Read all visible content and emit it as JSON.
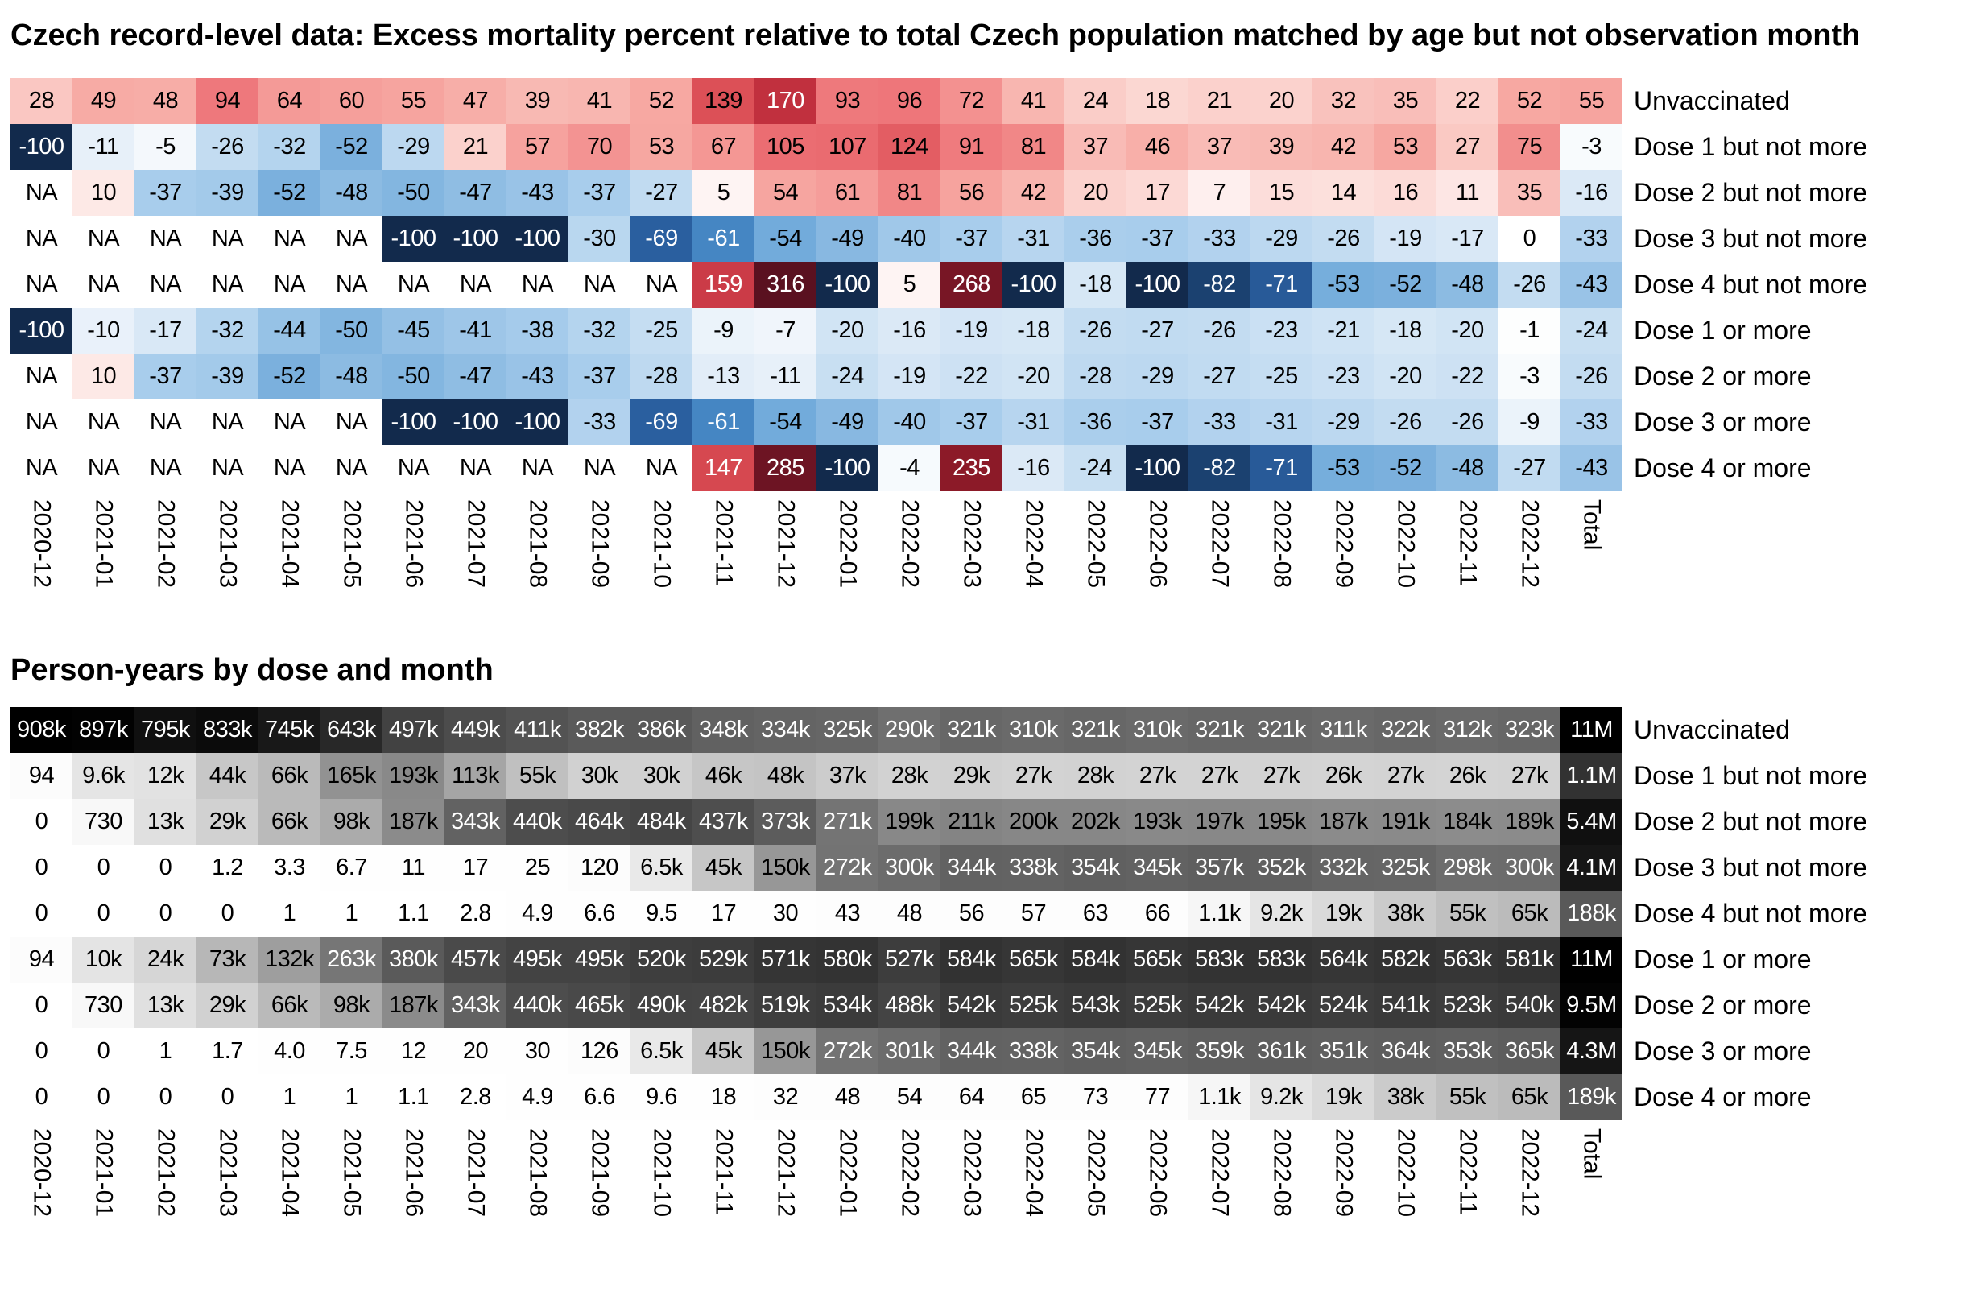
{
  "chart_data": [
    {
      "type": "heatmap",
      "title": "Czech record-level data: Excess mortality percent relative to total Czech population matched by age but not observation month",
      "legend_position": "none",
      "grid": false,
      "columns": [
        "2020-12",
        "2021-01",
        "2021-02",
        "2021-03",
        "2021-04",
        "2021-05",
        "2021-06",
        "2021-07",
        "2021-08",
        "2021-09",
        "2021-10",
        "2021-11",
        "2021-12",
        "2022-01",
        "2022-02",
        "2022-03",
        "2022-04",
        "2022-05",
        "2022-06",
        "2022-07",
        "2022-08",
        "2022-09",
        "2022-10",
        "2022-11",
        "2022-12",
        "Total"
      ],
      "rows": [
        "Unvaccinated",
        "Dose 1 but not more",
        "Dose 2 but not more",
        "Dose 3 but not more",
        "Dose 4 but not more",
        "Dose 1 or more",
        "Dose 2 or more",
        "Dose 3 or more",
        "Dose 4 or more"
      ],
      "values": [
        [
          "28",
          "49",
          "48",
          "94",
          "64",
          "60",
          "55",
          "47",
          "39",
          "41",
          "52",
          "139",
          "170",
          "93",
          "96",
          "72",
          "41",
          "24",
          "18",
          "21",
          "20",
          "32",
          "35",
          "22",
          "52",
          "55"
        ],
        [
          "-100",
          "-11",
          "-5",
          "-26",
          "-32",
          "-52",
          "-29",
          "21",
          "57",
          "70",
          "53",
          "67",
          "105",
          "107",
          "124",
          "91",
          "81",
          "37",
          "46",
          "37",
          "39",
          "42",
          "53",
          "27",
          "75",
          "-3"
        ],
        [
          "NA",
          "10",
          "-37",
          "-39",
          "-52",
          "-48",
          "-50",
          "-47",
          "-43",
          "-37",
          "-27",
          "5",
          "54",
          "61",
          "81",
          "56",
          "42",
          "20",
          "17",
          "7",
          "15",
          "14",
          "16",
          "11",
          "35",
          "-16"
        ],
        [
          "NA",
          "NA",
          "NA",
          "NA",
          "NA",
          "NA",
          "-100",
          "-100",
          "-100",
          "-30",
          "-69",
          "-61",
          "-54",
          "-49",
          "-40",
          "-37",
          "-31",
          "-36",
          "-37",
          "-33",
          "-29",
          "-26",
          "-19",
          "-17",
          "0",
          "-33"
        ],
        [
          "NA",
          "NA",
          "NA",
          "NA",
          "NA",
          "NA",
          "NA",
          "NA",
          "NA",
          "NA",
          "NA",
          "159",
          "316",
          "-100",
          "5",
          "268",
          "-100",
          "-18",
          "-100",
          "-82",
          "-71",
          "-53",
          "-52",
          "-48",
          "-26",
          "-43"
        ],
        [
          "-100",
          "-10",
          "-17",
          "-32",
          "-44",
          "-50",
          "-45",
          "-41",
          "-38",
          "-32",
          "-25",
          "-9",
          "-7",
          "-20",
          "-16",
          "-19",
          "-18",
          "-26",
          "-27",
          "-26",
          "-23",
          "-21",
          "-18",
          "-20",
          "-1",
          "-24"
        ],
        [
          "NA",
          "10",
          "-37",
          "-39",
          "-52",
          "-48",
          "-50",
          "-47",
          "-43",
          "-37",
          "-28",
          "-13",
          "-11",
          "-24",
          "-19",
          "-22",
          "-20",
          "-28",
          "-29",
          "-27",
          "-25",
          "-23",
          "-20",
          "-22",
          "-3",
          "-26"
        ],
        [
          "NA",
          "NA",
          "NA",
          "NA",
          "NA",
          "NA",
          "-100",
          "-100",
          "-100",
          "-33",
          "-69",
          "-61",
          "-54",
          "-49",
          "-40",
          "-37",
          "-31",
          "-36",
          "-37",
          "-33",
          "-31",
          "-29",
          "-26",
          "-26",
          "-9",
          "-33"
        ],
        [
          "NA",
          "NA",
          "NA",
          "NA",
          "NA",
          "NA",
          "NA",
          "NA",
          "NA",
          "NA",
          "NA",
          "147",
          "285",
          "-100",
          "-4",
          "235",
          "-16",
          "-24",
          "-100",
          "-82",
          "-71",
          "-53",
          "-52",
          "-48",
          "-27",
          "-43"
        ]
      ],
      "colorscale": {
        "type": "diverging",
        "na_color": "#ffffff",
        "positive_stops": [
          [
            0,
            "#ffffff"
          ],
          [
            20,
            "#fbd2cd"
          ],
          [
            50,
            "#f7aaa4"
          ],
          [
            100,
            "#ed7176"
          ],
          [
            140,
            "#dc4f56"
          ],
          [
            170,
            "#c1303e"
          ],
          [
            235,
            "#8c1a28"
          ],
          [
            316,
            "#5a1120"
          ]
        ],
        "negative_stops": [
          [
            0,
            "#ffffff"
          ],
          [
            11,
            "#e7f0f9"
          ],
          [
            26,
            "#c3dcf1"
          ],
          [
            37,
            "#a8cdec"
          ],
          [
            48,
            "#8cbbe2"
          ],
          [
            54,
            "#72abdb"
          ],
          [
            61,
            "#4586c3"
          ],
          [
            69,
            "#2a5f9f"
          ],
          [
            82,
            "#1b4170"
          ],
          [
            100,
            "#122a4c"
          ]
        ],
        "white_text_when_above": 145,
        "white_text_when_below": -60
      }
    },
    {
      "type": "heatmap",
      "title": "Person-years by dose and month",
      "legend_position": "none",
      "grid": false,
      "columns": [
        "2020-12",
        "2021-01",
        "2021-02",
        "2021-03",
        "2021-04",
        "2021-05",
        "2021-06",
        "2021-07",
        "2021-08",
        "2021-09",
        "2021-10",
        "2021-11",
        "2021-12",
        "2022-01",
        "2022-02",
        "2022-03",
        "2022-04",
        "2022-05",
        "2022-06",
        "2022-07",
        "2022-08",
        "2022-09",
        "2022-10",
        "2022-11",
        "2022-12",
        "Total"
      ],
      "rows": [
        "Unvaccinated",
        "Dose 1 but not more",
        "Dose 2 but not more",
        "Dose 3 but not more",
        "Dose 4 but not more",
        "Dose 1 or more",
        "Dose 2 or more",
        "Dose 3 or more",
        "Dose 4 or more"
      ],
      "values": [
        [
          "908k",
          "897k",
          "795k",
          "833k",
          "745k",
          "643k",
          "497k",
          "449k",
          "411k",
          "382k",
          "386k",
          "348k",
          "334k",
          "325k",
          "290k",
          "321k",
          "310k",
          "321k",
          "310k",
          "321k",
          "321k",
          "311k",
          "322k",
          "312k",
          "323k",
          "11M"
        ],
        [
          "94",
          "9.6k",
          "12k",
          "44k",
          "66k",
          "165k",
          "193k",
          "113k",
          "55k",
          "30k",
          "30k",
          "46k",
          "48k",
          "37k",
          "28k",
          "29k",
          "27k",
          "28k",
          "27k",
          "27k",
          "27k",
          "26k",
          "27k",
          "26k",
          "27k",
          "1.1M"
        ],
        [
          "0",
          "730",
          "13k",
          "29k",
          "66k",
          "98k",
          "187k",
          "343k",
          "440k",
          "464k",
          "484k",
          "437k",
          "373k",
          "271k",
          "199k",
          "211k",
          "200k",
          "202k",
          "193k",
          "197k",
          "195k",
          "187k",
          "191k",
          "184k",
          "189k",
          "5.4M"
        ],
        [
          "0",
          "0",
          "0",
          "1.2",
          "3.3",
          "6.7",
          "11",
          "17",
          "25",
          "120",
          "6.5k",
          "45k",
          "150k",
          "272k",
          "300k",
          "344k",
          "338k",
          "354k",
          "345k",
          "357k",
          "352k",
          "332k",
          "325k",
          "298k",
          "300k",
          "4.1M"
        ],
        [
          "0",
          "0",
          "0",
          "0",
          "1",
          "1",
          "1.1",
          "2.8",
          "4.9",
          "6.6",
          "9.5",
          "17",
          "30",
          "43",
          "48",
          "56",
          "57",
          "63",
          "66",
          "1.1k",
          "9.2k",
          "19k",
          "38k",
          "55k",
          "65k",
          "188k"
        ],
        [
          "94",
          "10k",
          "24k",
          "73k",
          "132k",
          "263k",
          "380k",
          "457k",
          "495k",
          "495k",
          "520k",
          "529k",
          "571k",
          "580k",
          "527k",
          "584k",
          "565k",
          "584k",
          "565k",
          "583k",
          "583k",
          "564k",
          "582k",
          "563k",
          "581k",
          "11M"
        ],
        [
          "0",
          "730",
          "13k",
          "29k",
          "66k",
          "98k",
          "187k",
          "343k",
          "440k",
          "465k",
          "490k",
          "482k",
          "519k",
          "534k",
          "488k",
          "542k",
          "525k",
          "543k",
          "525k",
          "542k",
          "542k",
          "524k",
          "541k",
          "523k",
          "540k",
          "9.5M"
        ],
        [
          "0",
          "0",
          "1",
          "1.7",
          "4.0",
          "7.5",
          "12",
          "20",
          "30",
          "126",
          "6.5k",
          "45k",
          "150k",
          "272k",
          "301k",
          "344k",
          "338k",
          "354k",
          "345k",
          "359k",
          "361k",
          "351k",
          "364k",
          "353k",
          "365k",
          "4.3M"
        ],
        [
          "0",
          "0",
          "0",
          "0",
          "1",
          "1",
          "1.1",
          "2.8",
          "4.9",
          "6.6",
          "9.6",
          "18",
          "32",
          "48",
          "54",
          "64",
          "65",
          "73",
          "77",
          "1.1k",
          "9.2k",
          "19k",
          "38k",
          "55k",
          "65k",
          "189k"
        ]
      ],
      "colorscale": {
        "type": "grayscale",
        "month_scale": "sqrt",
        "month_max": 908000,
        "total_scale": "log10",
        "total_min": 94,
        "total_max": 11000000,
        "dark_color": "#000000",
        "light_color": "#ffffff"
      }
    }
  ]
}
